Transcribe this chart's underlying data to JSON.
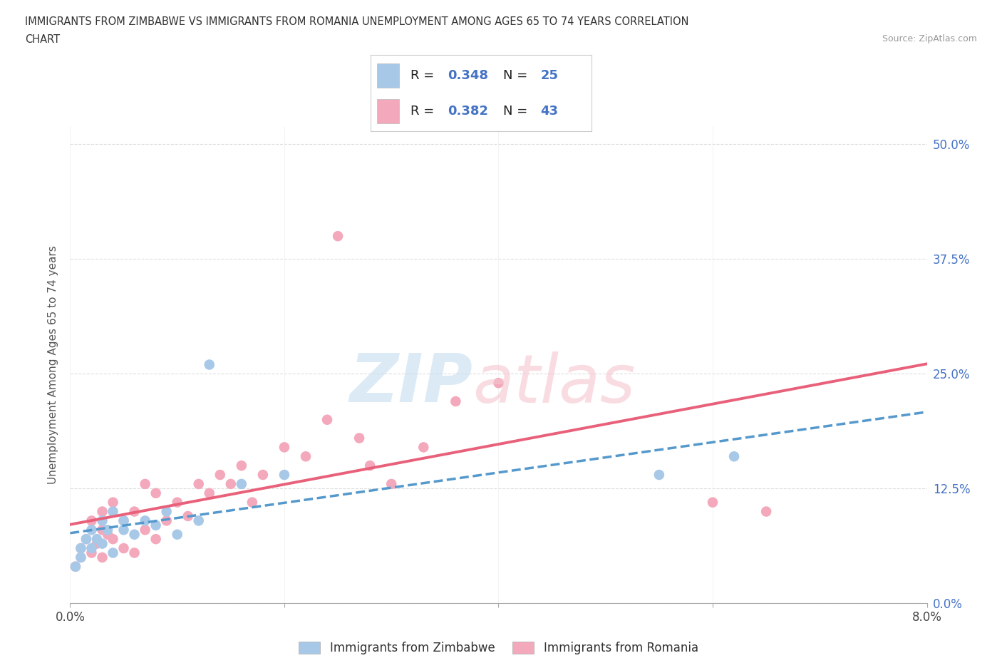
{
  "title_line1": "IMMIGRANTS FROM ZIMBABWE VS IMMIGRANTS FROM ROMANIA UNEMPLOYMENT AMONG AGES 65 TO 74 YEARS CORRELATION",
  "title_line2": "CHART",
  "source_text": "Source: ZipAtlas.com",
  "ylabel": "Unemployment Among Ages 65 to 74 years",
  "xlim": [
    0.0,
    0.08
  ],
  "ylim": [
    0.0,
    0.52
  ],
  "xticks": [
    0.0,
    0.02,
    0.04,
    0.06,
    0.08
  ],
  "xtick_labels_show": [
    "0.0%",
    "",
    "",
    "",
    "8.0%"
  ],
  "yticks": [
    0.0,
    0.125,
    0.25,
    0.375,
    0.5
  ],
  "ytick_labels": [
    "0.0%",
    "12.5%",
    "25.0%",
    "37.5%",
    "50.0%"
  ],
  "zimbabwe_color": "#a8c8e8",
  "romania_color": "#f4a8bc",
  "zimbabwe_line_color": "#5599cc",
  "romania_line_color": "#e8607a",
  "blue_color": "#4472c4",
  "label_zimbabwe": "Immigrants from Zimbabwe",
  "label_romania": "Immigrants from Romania",
  "zimbabwe_x": [
    0.0005,
    0.001,
    0.001,
    0.0015,
    0.002,
    0.002,
    0.0025,
    0.003,
    0.003,
    0.0035,
    0.004,
    0.004,
    0.005,
    0.005,
    0.006,
    0.007,
    0.008,
    0.009,
    0.01,
    0.012,
    0.013,
    0.016,
    0.02,
    0.055,
    0.062
  ],
  "zimbabwe_y": [
    0.04,
    0.05,
    0.06,
    0.07,
    0.06,
    0.08,
    0.07,
    0.065,
    0.09,
    0.08,
    0.055,
    0.1,
    0.08,
    0.09,
    0.075,
    0.09,
    0.085,
    0.1,
    0.075,
    0.09,
    0.26,
    0.13,
    0.14,
    0.14,
    0.16
  ],
  "romania_x": [
    0.0005,
    0.001,
    0.001,
    0.0015,
    0.002,
    0.002,
    0.0025,
    0.003,
    0.003,
    0.003,
    0.0035,
    0.004,
    0.004,
    0.005,
    0.005,
    0.006,
    0.006,
    0.007,
    0.007,
    0.008,
    0.008,
    0.009,
    0.01,
    0.011,
    0.012,
    0.013,
    0.014,
    0.015,
    0.016,
    0.017,
    0.018,
    0.02,
    0.022,
    0.024,
    0.025,
    0.027,
    0.028,
    0.03,
    0.033,
    0.036,
    0.04,
    0.06,
    0.065
  ],
  "romania_y": [
    0.04,
    0.05,
    0.06,
    0.07,
    0.055,
    0.09,
    0.065,
    0.05,
    0.08,
    0.1,
    0.075,
    0.07,
    0.11,
    0.06,
    0.09,
    0.055,
    0.1,
    0.08,
    0.13,
    0.07,
    0.12,
    0.09,
    0.11,
    0.095,
    0.13,
    0.12,
    0.14,
    0.13,
    0.15,
    0.11,
    0.14,
    0.17,
    0.16,
    0.2,
    0.4,
    0.18,
    0.15,
    0.13,
    0.17,
    0.22,
    0.24,
    0.11,
    0.1
  ],
  "background_color": "#ffffff",
  "grid_color": "#dddddd"
}
